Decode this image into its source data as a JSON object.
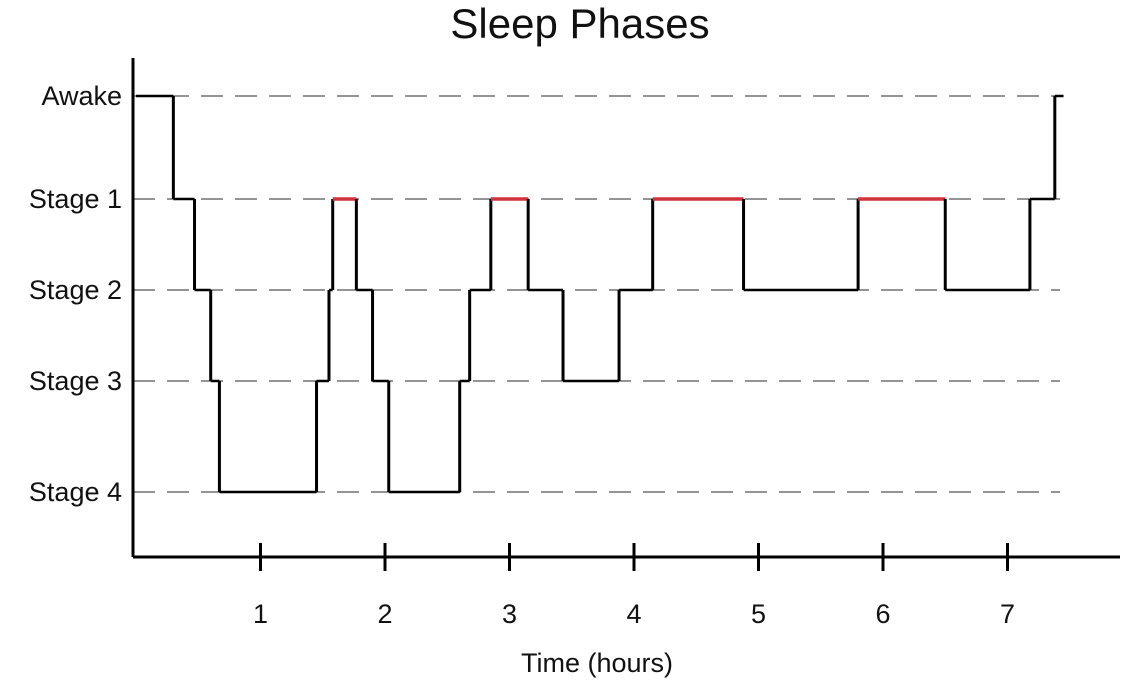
{
  "chart_data": {
    "type": "line",
    "title": "Sleep Phases",
    "xlabel": "Time (hours)",
    "ylabel": "",
    "xlim": [
      0,
      8.7
    ],
    "x_ticks": [
      "1",
      "2",
      "3",
      "4",
      "5",
      "6",
      "7"
    ],
    "y_categories": [
      "Awake",
      "Stage 1",
      "Stage 2",
      "Stage 3",
      "Stage 4"
    ],
    "grid": true,
    "grid_style": "dashed",
    "line_color": "#000000",
    "rem_color": "#d1323c",
    "segments": [
      {
        "start": 0.0,
        "end": 0.3,
        "stage": "Awake"
      },
      {
        "start": 0.3,
        "end": 0.47,
        "stage": "Stage 1"
      },
      {
        "start": 0.47,
        "end": 0.6,
        "stage": "Stage 2"
      },
      {
        "start": 0.6,
        "end": 0.67,
        "stage": "Stage 3"
      },
      {
        "start": 0.67,
        "end": 1.45,
        "stage": "Stage 4"
      },
      {
        "start": 1.45,
        "end": 1.55,
        "stage": "Stage 3"
      },
      {
        "start": 1.55,
        "end": 1.58,
        "stage": "Stage 2"
      },
      {
        "start": 1.58,
        "end": 1.77,
        "stage": "Stage 1",
        "rem": true
      },
      {
        "start": 1.77,
        "end": 1.9,
        "stage": "Stage 2"
      },
      {
        "start": 1.9,
        "end": 2.03,
        "stage": "Stage 3"
      },
      {
        "start": 2.03,
        "end": 2.6,
        "stage": "Stage 4"
      },
      {
        "start": 2.6,
        "end": 2.68,
        "stage": "Stage 3"
      },
      {
        "start": 2.68,
        "end": 2.85,
        "stage": "Stage 2"
      },
      {
        "start": 2.85,
        "end": 3.15,
        "stage": "Stage 1",
        "rem": true
      },
      {
        "start": 3.15,
        "end": 3.43,
        "stage": "Stage 2"
      },
      {
        "start": 3.43,
        "end": 3.88,
        "stage": "Stage 3"
      },
      {
        "start": 3.88,
        "end": 4.15,
        "stage": "Stage 2"
      },
      {
        "start": 4.15,
        "end": 4.88,
        "stage": "Stage 1",
        "rem": true
      },
      {
        "start": 4.88,
        "end": 5.8,
        "stage": "Stage 2"
      },
      {
        "start": 5.8,
        "end": 6.5,
        "stage": "Stage 1",
        "rem": true
      },
      {
        "start": 6.5,
        "end": 7.18,
        "stage": "Stage 2"
      },
      {
        "start": 7.18,
        "end": 7.38,
        "stage": "Stage 1"
      },
      {
        "start": 7.38,
        "end": 7.45,
        "stage": "Awake"
      }
    ]
  }
}
